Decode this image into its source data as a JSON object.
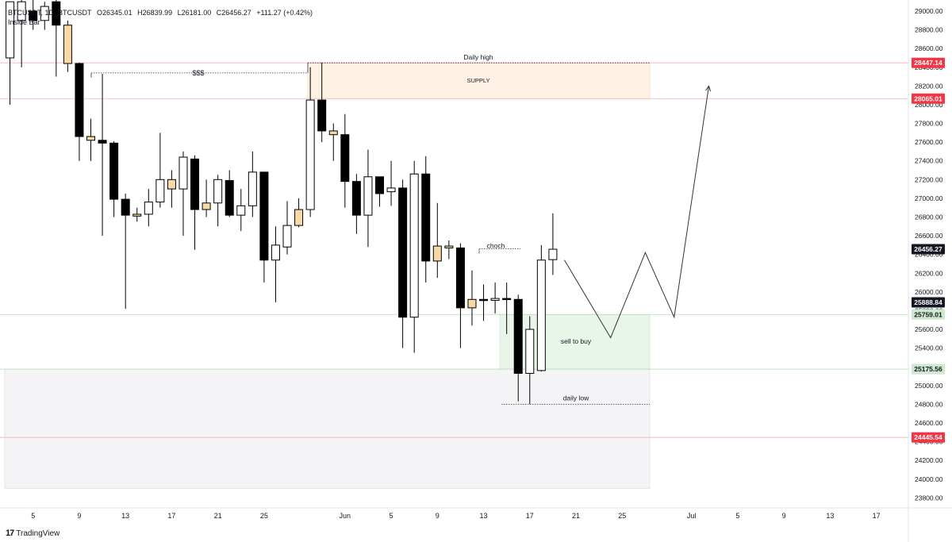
{
  "header": {
    "symbol_line": "BTCUSDT, 1D, BTCUSDT",
    "open": "O26345.01",
    "high": "H26839.99",
    "low": "L26181.00",
    "close": "C26456.27",
    "change": "+111.27 (+0.42%)",
    "indicator": "Inside Bar"
  },
  "branding": {
    "logo": "17",
    "name": "TradingView"
  },
  "colors": {
    "bull": "#ffffff",
    "bear": "#000000",
    "inside_bar": "#f7d9a8",
    "supply_zone": "#fdf2e4",
    "demand_zone": "#e9f5e9",
    "grey_zone": "#f4f4f6",
    "red_line": "#f0b3b3",
    "green_line": "#b5dcb5",
    "label_red": "#f23645",
    "label_green": "#cde8cd",
    "label_black": "#131722"
  },
  "chart_data": {
    "type": "candlestick",
    "y_range": [
      23700,
      29100
    ],
    "y_ticks": [
      23800,
      24000,
      24200,
      24400,
      24600,
      24800,
      25000,
      25200,
      25400,
      25600,
      25800,
      26000,
      26200,
      26400,
      26600,
      26800,
      27000,
      27200,
      27400,
      27600,
      27800,
      28000,
      28200,
      28400,
      28600,
      28800,
      29000
    ],
    "y_tick_labels": [
      "23800.00",
      "24000.00",
      "24200.00",
      "24400.00",
      "24600.00",
      "24800.00",
      "25000.00",
      "25200.00",
      "25400.00",
      "25600.00",
      "25800.00",
      "26000.00",
      "26200.00",
      "26400.00",
      "26600.00",
      "26800.00",
      "27000.00",
      "27200.00",
      "27400.00",
      "27600.00",
      "27800.00",
      "28000.00",
      "28200.00",
      "28400.00",
      "28600.00",
      "28800.00",
      "29000.00"
    ],
    "x_labels": [
      {
        "day": 0,
        "label": "5"
      },
      {
        "day": 4,
        "label": "9"
      },
      {
        "day": 8,
        "label": "13"
      },
      {
        "day": 12,
        "label": "17"
      },
      {
        "day": 16,
        "label": "21"
      },
      {
        "day": 20,
        "label": "25"
      },
      {
        "day": 27,
        "label": "Jun"
      },
      {
        "day": 31,
        "label": "5"
      },
      {
        "day": 35,
        "label": "9"
      },
      {
        "day": 39,
        "label": "13"
      },
      {
        "day": 43,
        "label": "17"
      },
      {
        "day": 47,
        "label": "21"
      },
      {
        "day": 51,
        "label": "25"
      },
      {
        "day": 57,
        "label": "Jul"
      },
      {
        "day": 61,
        "label": "5"
      },
      {
        "day": 65,
        "label": "9"
      },
      {
        "day": 69,
        "label": "13"
      },
      {
        "day": 73,
        "label": "17"
      }
    ],
    "candles": [
      {
        "d": -2,
        "o": 28500,
        "h": 29100,
        "l": 28000,
        "c": 29100,
        "k": "bull"
      },
      {
        "d": -1,
        "o": 29100,
        "h": 29200,
        "l": 28400,
        "c": 28900,
        "k": "bull"
      },
      {
        "d": 0,
        "o": 28900,
        "h": 29200,
        "l": 28800,
        "c": 29000,
        "k": "bear"
      },
      {
        "d": 1,
        "o": 28900,
        "h": 29100,
        "l": 28800,
        "c": 29050,
        "k": "bull"
      },
      {
        "d": 2,
        "o": 29100,
        "h": 29200,
        "l": 28300,
        "c": 28850,
        "k": "bear"
      },
      {
        "d": 3,
        "o": 28850,
        "h": 28900,
        "l": 28350,
        "c": 28440,
        "k": "inside"
      },
      {
        "d": 4,
        "o": 28440,
        "h": 28450,
        "l": 27400,
        "c": 27660,
        "k": "bear"
      },
      {
        "d": 5,
        "o": 27660,
        "h": 27850,
        "l": 27400,
        "c": 27620,
        "k": "inside"
      },
      {
        "d": 6,
        "o": 27620,
        "h": 28330,
        "l": 26600,
        "c": 27590,
        "k": "bear"
      },
      {
        "d": 7,
        "o": 27590,
        "h": 27610,
        "l": 26800,
        "c": 26990,
        "k": "bear"
      },
      {
        "d": 8,
        "o": 26990,
        "h": 27050,
        "l": 25820,
        "c": 26820,
        "k": "bear"
      },
      {
        "d": 9,
        "o": 26810,
        "h": 26900,
        "l": 26750,
        "c": 26830,
        "k": "inside"
      },
      {
        "d": 10,
        "o": 26830,
        "h": 27100,
        "l": 26700,
        "c": 26960,
        "k": "bull"
      },
      {
        "d": 11,
        "o": 26960,
        "h": 27700,
        "l": 26900,
        "c": 27200,
        "k": "bull"
      },
      {
        "d": 12,
        "o": 27200,
        "h": 27300,
        "l": 26900,
        "c": 27100,
        "k": "inside"
      },
      {
        "d": 13,
        "o": 27100,
        "h": 27500,
        "l": 26600,
        "c": 27440,
        "k": "bull"
      },
      {
        "d": 14,
        "o": 27420,
        "h": 27460,
        "l": 26450,
        "c": 26880,
        "k": "bear"
      },
      {
        "d": 15,
        "o": 26880,
        "h": 27200,
        "l": 26800,
        "c": 26950,
        "k": "inside"
      },
      {
        "d": 16,
        "o": 26950,
        "h": 27250,
        "l": 26700,
        "c": 27200,
        "k": "bull"
      },
      {
        "d": 17,
        "o": 27190,
        "h": 27300,
        "l": 26800,
        "c": 26820,
        "k": "bear"
      },
      {
        "d": 18,
        "o": 26820,
        "h": 27100,
        "l": 26650,
        "c": 26920,
        "k": "bull"
      },
      {
        "d": 19,
        "o": 26920,
        "h": 27500,
        "l": 26800,
        "c": 27280,
        "k": "bull"
      },
      {
        "d": 20,
        "o": 27280,
        "h": 27280,
        "l": 26100,
        "c": 26340,
        "k": "bear"
      },
      {
        "d": 21,
        "o": 26340,
        "h": 26700,
        "l": 25890,
        "c": 26500,
        "k": "bull"
      },
      {
        "d": 22,
        "o": 26480,
        "h": 26970,
        "l": 26400,
        "c": 26710,
        "k": "bull"
      },
      {
        "d": 23,
        "o": 26710,
        "h": 27000,
        "l": 26690,
        "c": 26880,
        "k": "inside"
      },
      {
        "d": 24,
        "o": 26880,
        "h": 28400,
        "l": 26800,
        "c": 28050,
        "k": "bull"
      },
      {
        "d": 25,
        "o": 28050,
        "h": 28450,
        "l": 27600,
        "c": 27720,
        "k": "bear"
      },
      {
        "d": 26,
        "o": 27720,
        "h": 27800,
        "l": 27400,
        "c": 27680,
        "k": "inside"
      },
      {
        "d": 27,
        "o": 27680,
        "h": 27900,
        "l": 26900,
        "c": 27180,
        "k": "bear"
      },
      {
        "d": 28,
        "o": 27180,
        "h": 27260,
        "l": 26620,
        "c": 26820,
        "k": "bear"
      },
      {
        "d": 29,
        "o": 26820,
        "h": 27520,
        "l": 26480,
        "c": 27230,
        "k": "bull"
      },
      {
        "d": 30,
        "o": 27230,
        "h": 27230,
        "l": 26910,
        "c": 27050,
        "k": "bear"
      },
      {
        "d": 31,
        "o": 27070,
        "h": 27400,
        "l": 26920,
        "c": 27110,
        "k": "bull"
      },
      {
        "d": 32,
        "o": 27110,
        "h": 27200,
        "l": 25400,
        "c": 25730,
        "k": "bear"
      },
      {
        "d": 33,
        "o": 25730,
        "h": 27400,
        "l": 25350,
        "c": 27260,
        "k": "bull"
      },
      {
        "d": 34,
        "o": 27260,
        "h": 27450,
        "l": 26100,
        "c": 26330,
        "k": "bear"
      },
      {
        "d": 35,
        "o": 26330,
        "h": 26950,
        "l": 26150,
        "c": 26490,
        "k": "inside"
      },
      {
        "d": 36,
        "o": 26490,
        "h": 26550,
        "l": 26350,
        "c": 26470,
        "k": "inside"
      },
      {
        "d": 37,
        "o": 26470,
        "h": 26520,
        "l": 25400,
        "c": 25830,
        "k": "bear"
      },
      {
        "d": 38,
        "o": 25830,
        "h": 26230,
        "l": 25640,
        "c": 25920,
        "k": "inside"
      },
      {
        "d": 39,
        "o": 25920,
        "h": 26080,
        "l": 25690,
        "c": 25910,
        "k": "bear"
      },
      {
        "d": 40,
        "o": 25910,
        "h": 26100,
        "l": 25770,
        "c": 25930,
        "k": "bull"
      },
      {
        "d": 41,
        "o": 25930,
        "h": 26100,
        "l": 25550,
        "c": 25920,
        "k": "bear"
      },
      {
        "d": 42,
        "o": 25920,
        "h": 25970,
        "l": 24830,
        "c": 25130,
        "k": "bear"
      },
      {
        "d": 43,
        "o": 25130,
        "h": 25740,
        "l": 24800,
        "c": 25600,
        "k": "bull"
      },
      {
        "d": 44,
        "o": 25160,
        "h": 26500,
        "l": 25150,
        "c": 26340,
        "k": "bull"
      },
      {
        "d": 45,
        "o": 26345,
        "h": 26840,
        "l": 26181,
        "c": 26456,
        "k": "bull"
      }
    ],
    "zones": [
      {
        "name": "supply",
        "label": "SUPPLY",
        "top": 28447.14,
        "bottom": 28065.01
      },
      {
        "name": "demand",
        "label": "sell to buy",
        "top": 25759.01,
        "bottom": 25175.56
      },
      {
        "name": "grey",
        "label": "",
        "top": 25175.56,
        "bottom": 23900
      }
    ],
    "annotations": {
      "daily_high": {
        "text": "Daily high",
        "price": 28447.14
      },
      "daily_low": {
        "text": "daily low",
        "price": 24800
      },
      "liquidity": {
        "text": "$$$",
        "price": 28340
      },
      "choch": {
        "text": "choch",
        "price": 26460
      },
      "sell_to_buy": {
        "text": "sell to buy"
      },
      "supply": {
        "text": "SUPPLY"
      }
    },
    "projection": [
      {
        "d": 46,
        "p": 26340
      },
      {
        "d": 50,
        "p": 25510
      },
      {
        "d": 53,
        "p": 26420
      },
      {
        "d": 55.5,
        "p": 25730
      },
      {
        "d": 58.5,
        "p": 28200
      }
    ],
    "price_labels": [
      {
        "value": "28447.14",
        "price": 28447.14,
        "style": "red"
      },
      {
        "value": "28065.01",
        "price": 28065.01,
        "style": "red"
      },
      {
        "value": "26456.27",
        "price": 26456.27,
        "style": "black"
      },
      {
        "value": "25888.84",
        "price": 25888.84,
        "style": "black"
      },
      {
        "value": "25759.01",
        "price": 25759.01,
        "style": "green"
      },
      {
        "value": "25175.56",
        "price": 25175.56,
        "style": "green"
      },
      {
        "value": "24445.54",
        "price": 24445.54,
        "style": "red"
      }
    ]
  }
}
